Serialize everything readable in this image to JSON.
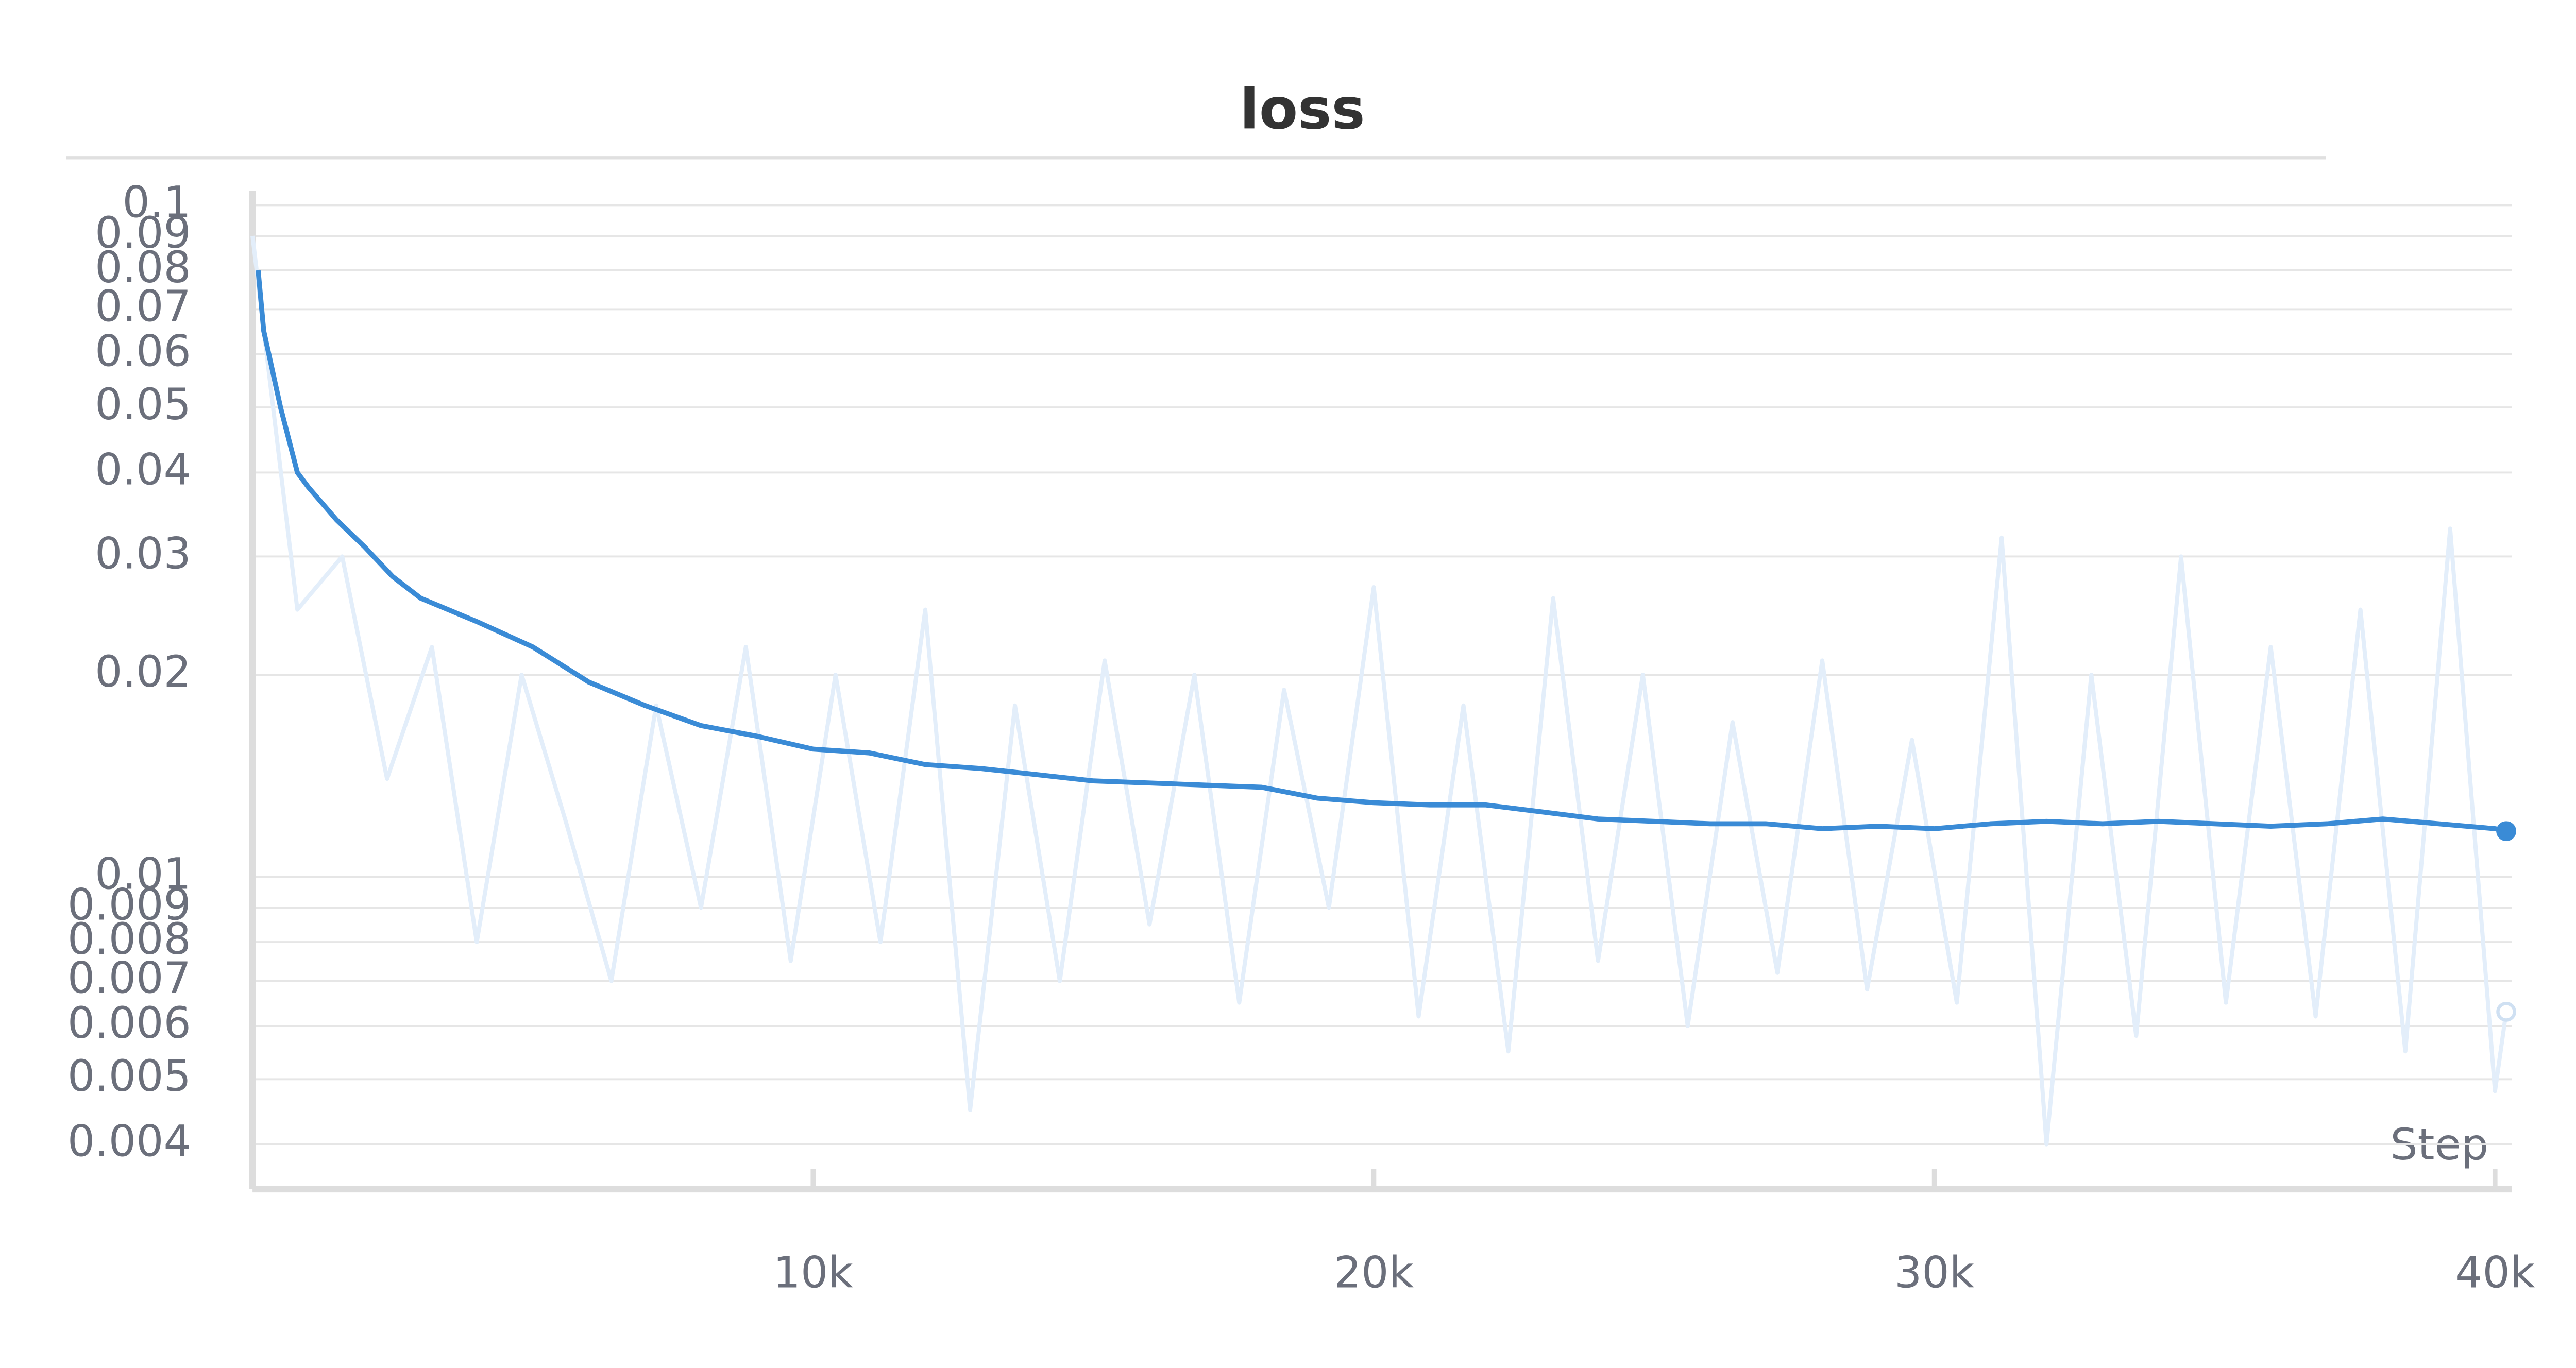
{
  "chart_data": {
    "type": "line",
    "title": "loss",
    "x_label": "Step",
    "ylog": true,
    "grid": true,
    "xlim": [
      0,
      40300
    ],
    "ylim": [
      0.00343,
      0.105
    ],
    "xticks": [
      {
        "value": 10000,
        "label": "10k"
      },
      {
        "value": 20000,
        "label": "20k"
      },
      {
        "value": 30000,
        "label": "30k"
      },
      {
        "value": 40000,
        "label": "40k"
      }
    ],
    "yticks": [
      0.004,
      0.005,
      0.006,
      0.007,
      0.008,
      0.009,
      0.01,
      0.02,
      0.03,
      0.04,
      0.05,
      0.06,
      0.07,
      0.08,
      0.09,
      0.1
    ],
    "series": [
      {
        "color": "#e3eefa",
        "x": [
          0,
          800,
          1600,
          2400,
          3200,
          4000,
          4800,
          5600,
          6400,
          7200,
          8000,
          8800,
          9600,
          10400,
          11200,
          12000,
          12800,
          13600,
          14400,
          15200,
          16000,
          16800,
          17600,
          18400,
          19200,
          20000,
          20800,
          21600,
          22400,
          23200,
          24000,
          24800,
          25600,
          26400,
          27200,
          28000,
          28800,
          29600,
          30400,
          31200,
          32000,
          32800,
          33600,
          34400,
          35200,
          36000,
          36800,
          37600,
          38400,
          39200,
          40000,
          40200
        ],
        "values": [
          0.09,
          0.025,
          0.03,
          0.014,
          0.022,
          0.008,
          0.02,
          0.012,
          0.007,
          0.018,
          0.009,
          0.022,
          0.0075,
          0.02,
          0.008,
          0.025,
          0.0045,
          0.018,
          0.007,
          0.021,
          0.0085,
          0.02,
          0.0065,
          0.019,
          0.009,
          0.027,
          0.0062,
          0.018,
          0.0055,
          0.026,
          0.0075,
          0.02,
          0.006,
          0.017,
          0.0072,
          0.021,
          0.0068,
          0.016,
          0.0065,
          0.032,
          0.004,
          0.02,
          0.0058,
          0.03,
          0.0065,
          0.022,
          0.0062,
          0.025,
          0.0055,
          0.033,
          0.0048,
          0.0063
        ]
      },
      {
        "color": "#3a8bd6",
        "x": [
          100,
          200,
          500,
          800,
          1000,
          1500,
          2000,
          2500,
          3000,
          4000,
          5000,
          6000,
          7000,
          8000,
          9000,
          10000,
          11000,
          12000,
          13000,
          14000,
          15000,
          16000,
          17000,
          18000,
          19000,
          20000,
          21000,
          22000,
          23000,
          24000,
          25000,
          26000,
          27000,
          28000,
          29000,
          30000,
          31000,
          32000,
          33000,
          34000,
          35000,
          36000,
          37000,
          38000,
          39000,
          40000,
          40200
        ],
        "values": [
          0.08,
          0.065,
          0.05,
          0.04,
          0.038,
          0.034,
          0.031,
          0.028,
          0.026,
          0.024,
          0.022,
          0.0195,
          0.018,
          0.0168,
          0.0162,
          0.0155,
          0.0153,
          0.0147,
          0.0145,
          0.0142,
          0.0139,
          0.0138,
          0.0137,
          0.0136,
          0.0131,
          0.0129,
          0.0128,
          0.0128,
          0.0125,
          0.0122,
          0.0121,
          0.012,
          0.012,
          0.0118,
          0.0119,
          0.0118,
          0.012,
          0.0121,
          0.012,
          0.0121,
          0.012,
          0.0119,
          0.012,
          0.0122,
          0.012,
          0.0118,
          0.0117
        ]
      }
    ]
  }
}
